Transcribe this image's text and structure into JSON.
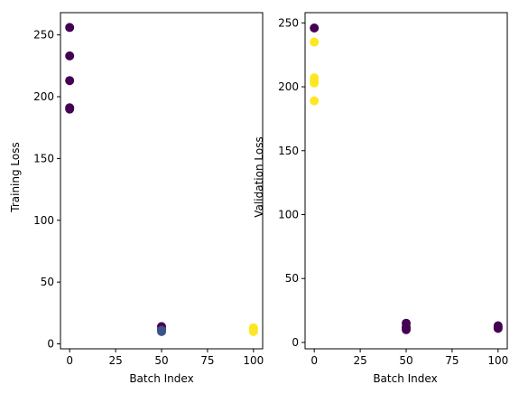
{
  "colors": {
    "purple": "#440154",
    "blue": "#3b528b",
    "yellow": "#fde725"
  },
  "chart_data": [
    {
      "type": "scatter",
      "xlabel": "Batch Index",
      "ylabel": "Training Loss",
      "xlim": [
        -5,
        105
      ],
      "ylim": [
        -4,
        268
      ],
      "xticks": [
        0,
        25,
        50,
        75,
        100
      ],
      "yticks": [
        0,
        50,
        100,
        150,
        200,
        250
      ],
      "grid": false,
      "points": [
        {
          "x": 0,
          "y": 256,
          "color": "purple"
        },
        {
          "x": 0,
          "y": 233,
          "color": "purple"
        },
        {
          "x": 0,
          "y": 213,
          "color": "purple"
        },
        {
          "x": 0,
          "y": 191,
          "color": "purple"
        },
        {
          "x": 0,
          "y": 190,
          "color": "purple"
        },
        {
          "x": 50,
          "y": 14,
          "color": "purple"
        },
        {
          "x": 50,
          "y": 12,
          "color": "purple"
        },
        {
          "x": 50,
          "y": 11,
          "color": "blue"
        },
        {
          "x": 50,
          "y": 10,
          "color": "blue"
        },
        {
          "x": 100,
          "y": 13,
          "color": "yellow"
        },
        {
          "x": 100,
          "y": 12,
          "color": "yellow"
        },
        {
          "x": 100,
          "y": 11,
          "color": "yellow"
        },
        {
          "x": 100,
          "y": 10,
          "color": "yellow"
        }
      ]
    },
    {
      "type": "scatter",
      "xlabel": "Batch Index",
      "ylabel": "Validation Loss",
      "xlim": [
        -5,
        105
      ],
      "ylim": [
        -5,
        258
      ],
      "xticks": [
        0,
        25,
        50,
        75,
        100
      ],
      "yticks": [
        0,
        50,
        100,
        150,
        200,
        250
      ],
      "grid": false,
      "points": [
        {
          "x": 0,
          "y": 246,
          "color": "purple"
        },
        {
          "x": 0,
          "y": 235,
          "color": "yellow"
        },
        {
          "x": 0,
          "y": 207,
          "color": "yellow"
        },
        {
          "x": 0,
          "y": 205,
          "color": "yellow"
        },
        {
          "x": 0,
          "y": 203,
          "color": "yellow"
        },
        {
          "x": 0,
          "y": 189,
          "color": "yellow"
        },
        {
          "x": 50,
          "y": 15,
          "color": "purple"
        },
        {
          "x": 50,
          "y": 12,
          "color": "purple"
        },
        {
          "x": 50,
          "y": 10,
          "color": "purple"
        },
        {
          "x": 100,
          "y": 13,
          "color": "purple"
        },
        {
          "x": 100,
          "y": 12,
          "color": "purple"
        },
        {
          "x": 100,
          "y": 11,
          "color": "purple"
        }
      ]
    }
  ]
}
